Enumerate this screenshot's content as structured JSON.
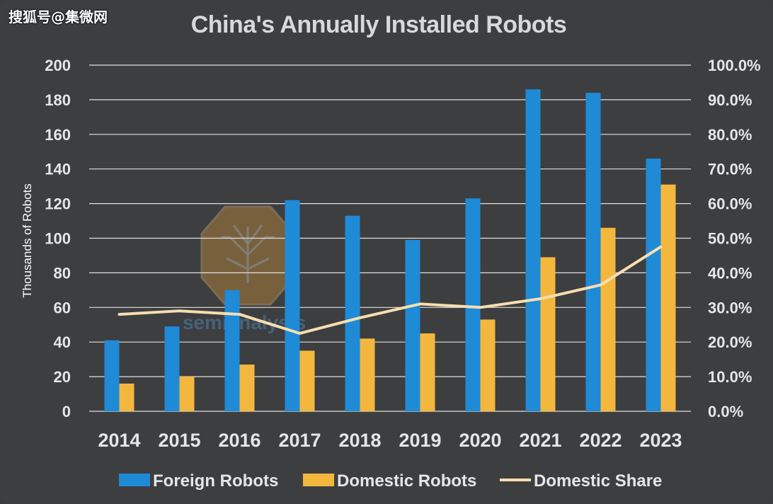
{
  "corner_watermark": "搜狐号@集微网",
  "center_watermark": "semianalysis",
  "colors": {
    "background": "#3d3e40",
    "foreign": "#1f8ad6",
    "domestic": "#f4b73e",
    "share": "#f7deb0",
    "grid": "#e0e0e0",
    "text": "#e6e6e6"
  },
  "chart_data": {
    "type": "bar",
    "title": "China's Annually Installed Robots",
    "ylabel": "Thousands of Robots",
    "ylim": [
      0,
      200
    ],
    "y_ticks": [
      "0",
      "20",
      "40",
      "60",
      "80",
      "100",
      "120",
      "140",
      "160",
      "180",
      "200"
    ],
    "y2lim": [
      0,
      1
    ],
    "y2_ticks": [
      "0.0%",
      "10.0%",
      "20.0%",
      "30.0%",
      "40.0%",
      "50.0%",
      "60.0%",
      "70.0%",
      "80.0%",
      "90.0%",
      "100.0%"
    ],
    "categories": [
      "2014",
      "2015",
      "2016",
      "2017",
      "2018",
      "2019",
      "2020",
      "2021",
      "2022",
      "2023"
    ],
    "grid": true,
    "legend_position": "bottom",
    "series": [
      {
        "name": "Foreign Robots",
        "type": "bar",
        "axis": "left",
        "color": "#1f8ad6",
        "values": [
          41,
          49,
          70,
          122,
          113,
          99,
          123,
          186,
          184,
          146
        ]
      },
      {
        "name": "Domestic Robots",
        "type": "bar",
        "axis": "left",
        "color": "#f4b73e",
        "values": [
          16,
          20,
          27,
          35,
          42,
          45,
          53,
          89,
          106,
          131
        ]
      },
      {
        "name": "Domestic Share",
        "type": "line",
        "axis": "right",
        "color": "#f7deb0",
        "values": [
          0.28,
          0.29,
          0.28,
          0.225,
          0.27,
          0.31,
          0.3,
          0.325,
          0.365,
          0.475
        ]
      }
    ]
  }
}
